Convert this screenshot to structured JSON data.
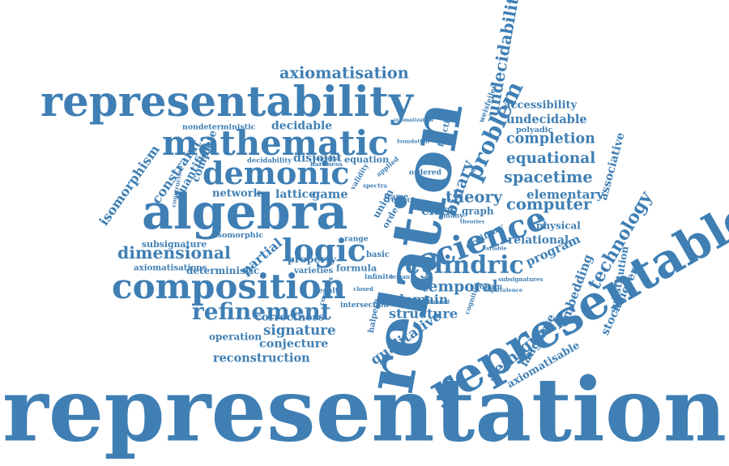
{
  "accent_color": "#3f7fb4",
  "background_color": "#ffffff",
  "words": [
    {
      "text": "representation"
    },
    {
      "text": "relation"
    },
    {
      "text": "representable"
    },
    {
      "text": "representability"
    },
    {
      "text": "algebra"
    },
    {
      "text": "mathematic"
    },
    {
      "text": "composition"
    },
    {
      "text": "demonic"
    },
    {
      "text": "logic"
    },
    {
      "text": "science"
    },
    {
      "text": "cylindric"
    },
    {
      "text": "refinement"
    },
    {
      "text": "axiomatisation"
    },
    {
      "text": "undecidability"
    },
    {
      "text": "dimensional"
    },
    {
      "text": "equational"
    },
    {
      "text": "completion"
    },
    {
      "text": "spacetime"
    },
    {
      "text": "temporal"
    },
    {
      "text": "computer"
    },
    {
      "text": "problem"
    },
    {
      "text": "theory"
    },
    {
      "text": "technology"
    },
    {
      "text": "semigroup"
    },
    {
      "text": "undecidable"
    },
    {
      "text": "binary"
    },
    {
      "text": "elementary"
    },
    {
      "text": "relational"
    },
    {
      "text": "signature"
    },
    {
      "text": "reconstruction"
    },
    {
      "text": "conjecture"
    },
    {
      "text": "qualitative"
    },
    {
      "text": "structure"
    },
    {
      "text": "domain"
    },
    {
      "text": "isomorphism"
    },
    {
      "text": "decidable"
    },
    {
      "text": "accessibility"
    },
    {
      "text": "partial"
    },
    {
      "text": "associative"
    },
    {
      "text": "stockmeyer"
    },
    {
      "text": "substitution"
    },
    {
      "text": "embedding"
    },
    {
      "text": "language"
    },
    {
      "text": "axiomatisable"
    },
    {
      "text": "operation"
    },
    {
      "text": "correctness"
    },
    {
      "text": "physical"
    },
    {
      "text": "program"
    },
    {
      "text": "network"
    },
    {
      "text": "lattice"
    },
    {
      "text": "game"
    },
    {
      "text": "class"
    },
    {
      "text": "graph"
    },
    {
      "text": "property"
    },
    {
      "text": "constraint"
    },
    {
      "text": "quantifier"
    },
    {
      "text": "complete"
    },
    {
      "text": "disjoint"
    },
    {
      "text": "equation"
    },
    {
      "text": "subsignature"
    },
    {
      "text": "axiomatisations"
    },
    {
      "text": "deterministic"
    },
    {
      "text": "formula"
    },
    {
      "text": "varieties"
    },
    {
      "text": "isomorphic"
    },
    {
      "text": "polyadic"
    },
    {
      "text": "ordinary"
    },
    {
      "text": "nondeterministic"
    },
    {
      "text": "decidability"
    },
    {
      "text": "hardness"
    },
    {
      "text": "range"
    },
    {
      "text": "shoham"
    },
    {
      "text": "intersection"
    },
    {
      "text": "union"
    },
    {
      "text": "order"
    },
    {
      "text": "reduct"
    },
    {
      "text": "colour"
    },
    {
      "text": "function"
    },
    {
      "text": "ordered"
    },
    {
      "text": "frame"
    },
    {
      "text": "basic"
    },
    {
      "text": "infinite"
    },
    {
      "text": "result"
    },
    {
      "text": "many"
    },
    {
      "text": "subsignatures"
    },
    {
      "text": "equivalence"
    },
    {
      "text": "validity"
    },
    {
      "text": "halpern"
    },
    {
      "text": "spectra"
    },
    {
      "text": "applied"
    },
    {
      "text": "weisfeiler"
    },
    {
      "text": "axiomatization"
    },
    {
      "text": "converse"
    },
    {
      "text": "construction"
    },
    {
      "text": "variable"
    },
    {
      "text": "theories"
    },
    {
      "text": "cognition"
    },
    {
      "text": "unbounded"
    },
    {
      "text": "complex"
    },
    {
      "text": "leman"
    },
    {
      "text": "closed"
    },
    {
      "text": "foundation"
    }
  ]
}
